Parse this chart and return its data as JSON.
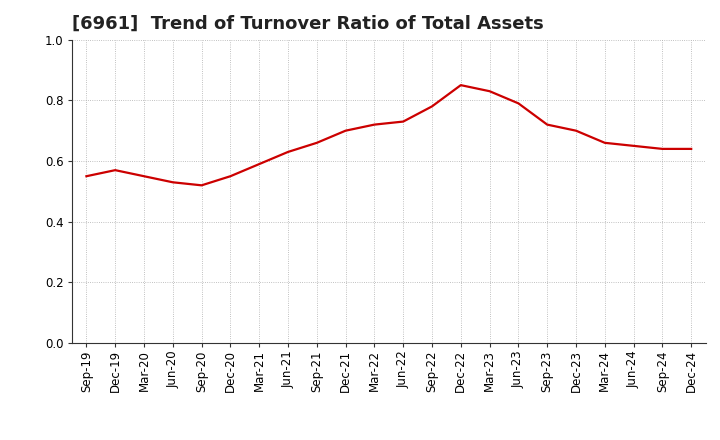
{
  "title": "[6961]  Trend of Turnover Ratio of Total Assets",
  "x_labels": [
    "Sep-19",
    "Dec-19",
    "Mar-20",
    "Jun-20",
    "Sep-20",
    "Dec-20",
    "Mar-21",
    "Jun-21",
    "Sep-21",
    "Dec-21",
    "Mar-22",
    "Jun-22",
    "Sep-22",
    "Dec-22",
    "Mar-23",
    "Jun-23",
    "Sep-23",
    "Dec-23",
    "Mar-24",
    "Jun-24",
    "Sep-24",
    "Dec-24"
  ],
  "y_values": [
    0.55,
    0.57,
    0.55,
    0.53,
    0.52,
    0.55,
    0.59,
    0.63,
    0.66,
    0.7,
    0.72,
    0.73,
    0.78,
    0.85,
    0.83,
    0.79,
    0.72,
    0.7,
    0.66,
    0.65,
    0.64,
    0.64
  ],
  "line_color": "#cc0000",
  "line_width": 1.6,
  "ylim": [
    0.0,
    1.0
  ],
  "yticks": [
    0.0,
    0.2,
    0.4,
    0.6,
    0.8,
    1.0
  ],
  "grid_color": "#999999",
  "background_color": "#ffffff",
  "title_fontsize": 13,
  "tick_fontsize": 8.5
}
